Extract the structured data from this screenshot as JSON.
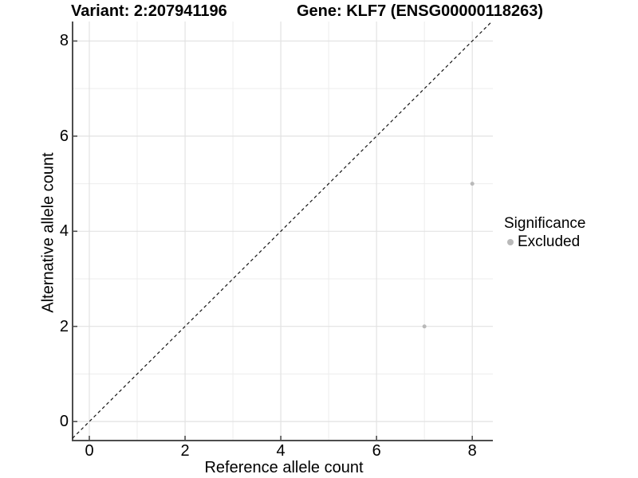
{
  "colors": {
    "background": "#ffffff",
    "grid_major": "#e2e2e2",
    "grid_minor": "#ededed",
    "axis": "#4d4d4d",
    "tick": "#4d4d4d",
    "dashed_line": "#141414",
    "point": "#b9b9b9",
    "text": "#000000"
  },
  "chart_data": {
    "type": "scatter",
    "title_left": "Variant: 2:207941196",
    "title_right": "Gene: KLF7 (ENSG00000118263)",
    "xlabel": "Reference allele count",
    "ylabel": "Alternative allele count",
    "xticks": [
      0,
      2,
      4,
      6,
      8
    ],
    "yticks": [
      0,
      2,
      4,
      6,
      8
    ],
    "minor_gridlines_x": [
      1,
      3,
      5,
      7
    ],
    "minor_gridlines_y": [
      1,
      3,
      5,
      7
    ],
    "xlim": [
      -0.35,
      8.43
    ],
    "ylim": [
      -0.4,
      8.41
    ],
    "grid": true,
    "equal_aspect": true,
    "reference_line": {
      "kind": "identity",
      "equation": "y = x",
      "style": "dashed",
      "color": "#141414"
    },
    "legend": {
      "title": "Significance",
      "position": "right",
      "items": [
        {
          "label": "Excluded",
          "color": "#b9b9b9"
        }
      ]
    },
    "series": [
      {
        "name": "Excluded",
        "color": "#b9b9b9",
        "marker": "circle",
        "points": [
          {
            "x": 7,
            "y": 2
          },
          {
            "x": 8,
            "y": 5
          }
        ]
      }
    ]
  }
}
